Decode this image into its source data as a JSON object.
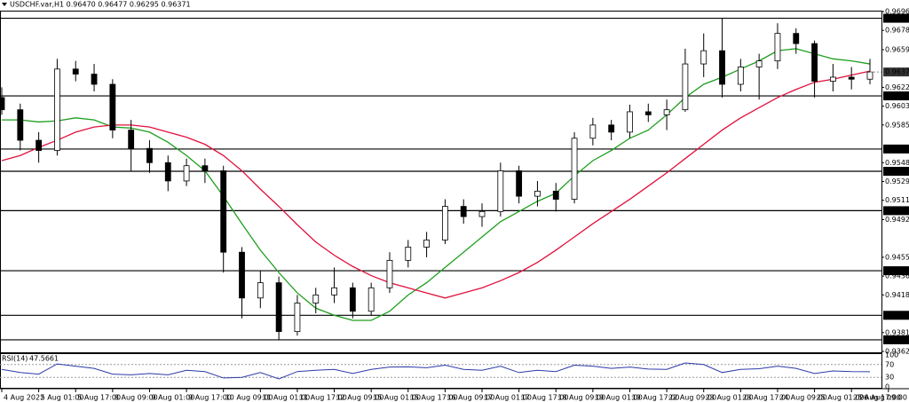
{
  "chart_data": [
    {
      "type": "candlestick",
      "title": "USDCHF.var,H1  0.96470 0.96477 0.96295 0.96371",
      "x": [
        0,
        8,
        16,
        24,
        32,
        40,
        48,
        56,
        64,
        72,
        80,
        88,
        96,
        104,
        112,
        120,
        128,
        136,
        144,
        152,
        160,
        168,
        176,
        184,
        192,
        200,
        208,
        216,
        224,
        232,
        240,
        248,
        256,
        264,
        272,
        280,
        288,
        296,
        304,
        312,
        320,
        328,
        336,
        344,
        352,
        360,
        368,
        376
      ],
      "open": [
        0.9612,
        0.96,
        0.957,
        0.956,
        0.964,
        0.9635,
        0.9625,
        0.958,
        0.9562,
        0.9548,
        0.953,
        0.9545,
        0.954,
        0.946,
        0.9415,
        0.943,
        0.9382,
        0.941,
        0.9418,
        0.9425,
        0.9402,
        0.9425,
        0.9452,
        0.9465,
        0.9472,
        0.9505,
        0.9495,
        0.95,
        0.954,
        0.9515,
        0.952,
        0.9512,
        0.9572,
        0.9585,
        0.9578,
        0.9598,
        0.9595,
        0.96,
        0.9645,
        0.9658,
        0.9625,
        0.9642,
        0.9648,
        0.9675,
        0.9665,
        0.9628,
        0.9632,
        0.963
      ],
      "high": [
        0.9622,
        0.9606,
        0.9578,
        0.965,
        0.9648,
        0.9645,
        0.963,
        0.959,
        0.957,
        0.9555,
        0.9552,
        0.9552,
        0.9545,
        0.9465,
        0.9442,
        0.9436,
        0.9418,
        0.9425,
        0.9445,
        0.943,
        0.943,
        0.946,
        0.9472,
        0.948,
        0.9512,
        0.9512,
        0.9508,
        0.9548,
        0.9545,
        0.953,
        0.9528,
        0.9578,
        0.9592,
        0.959,
        0.9605,
        0.9606,
        0.961,
        0.966,
        0.9675,
        0.96899,
        0.965,
        0.9655,
        0.9685,
        0.968,
        0.9668,
        0.9645,
        0.9642,
        0.965
      ],
      "low": [
        0.9595,
        0.956,
        0.9548,
        0.9555,
        0.9628,
        0.9618,
        0.9572,
        0.954,
        0.9538,
        0.952,
        0.9525,
        0.9528,
        0.944,
        0.9395,
        0.9405,
        0.93739,
        0.9378,
        0.94,
        0.941,
        0.9395,
        0.9398,
        0.942,
        0.9445,
        0.9455,
        0.9468,
        0.9488,
        0.9485,
        0.9495,
        0.9508,
        0.9505,
        0.95,
        0.9508,
        0.9565,
        0.957,
        0.9572,
        0.9588,
        0.958,
        0.9598,
        0.9632,
        0.9612,
        0.9618,
        0.961,
        0.964,
        0.9655,
        0.9612,
        0.9618,
        0.962,
        0.9625
      ],
      "close": [
        0.96,
        0.957,
        0.956,
        0.964,
        0.9635,
        0.9625,
        0.958,
        0.9562,
        0.9548,
        0.953,
        0.9545,
        0.954,
        0.946,
        0.9415,
        0.943,
        0.9382,
        0.941,
        0.9418,
        0.9425,
        0.9402,
        0.9425,
        0.9452,
        0.9465,
        0.9472,
        0.9505,
        0.9495,
        0.95,
        0.954,
        0.9515,
        0.952,
        0.9512,
        0.9572,
        0.9585,
        0.9578,
        0.9598,
        0.9595,
        0.96,
        0.9645,
        0.9658,
        0.9625,
        0.9642,
        0.9648,
        0.9675,
        0.9665,
        0.9628,
        0.9632,
        0.963,
        0.96371
      ],
      "up_color": "#ffffff",
      "down_color": "#000000",
      "series": [
        {
          "color": "#1e9e1e",
          "values": [
            0.959,
            0.959,
            0.9588,
            0.9589,
            0.9592,
            0.959,
            0.9583,
            0.9582,
            0.9578,
            0.9568,
            0.9555,
            0.954,
            0.9515,
            0.9488,
            0.9462,
            0.944,
            0.942,
            0.9405,
            0.9398,
            0.9393,
            0.9393,
            0.9402,
            0.9418,
            0.943,
            0.9445,
            0.946,
            0.9475,
            0.949,
            0.95,
            0.951,
            0.9518,
            0.9535,
            0.955,
            0.956,
            0.9572,
            0.958,
            0.9595,
            0.9612,
            0.9625,
            0.9632,
            0.964,
            0.9648,
            0.9658,
            0.966,
            0.9655,
            0.965,
            0.9648,
            0.9645
          ]
        },
        {
          "color": "#e0103c",
          "values": [
            0.955,
            0.9555,
            0.9563,
            0.957,
            0.9578,
            0.9583,
            0.9585,
            0.9585,
            0.9583,
            0.9578,
            0.9573,
            0.9566,
            0.9555,
            0.954,
            0.9522,
            0.9505,
            0.9487,
            0.947,
            0.9457,
            0.9446,
            0.9437,
            0.943,
            0.9425,
            0.942,
            0.9415,
            0.942,
            0.9425,
            0.9432,
            0.944,
            0.945,
            0.9462,
            0.9475,
            0.9488,
            0.95,
            0.9512,
            0.9525,
            0.9538,
            0.9552,
            0.9566,
            0.958,
            0.9592,
            0.9602,
            0.9612,
            0.962,
            0.9627,
            0.963,
            0.9634,
            0.9638
          ]
        }
      ],
      "levels": [
        {
          "value": 0.96899,
          "label": "0.96899"
        },
        {
          "value": 0.96136,
          "label": "0.96136"
        },
        {
          "value": 0.95614,
          "label": "0.95614"
        },
        {
          "value": 0.95395,
          "label": "0.95395"
        },
        {
          "value": 0.95008,
          "label": "0.95008"
        },
        {
          "value": 0.94418,
          "label": "0.94418"
        },
        {
          "value": 0.9398,
          "label": "0.93980"
        },
        {
          "value": 0.93739,
          "label": "0.93739"
        }
      ],
      "xlim": [
        0,
        381
      ],
      "xticks": [
        {
          "value": 0,
          "label": "4 Aug 2022"
        },
        {
          "value": 16,
          "label": "5 Aug 01:00"
        },
        {
          "value": 32,
          "label": "5 Aug 17:00"
        },
        {
          "value": 48,
          "label": "8 Aug 09:00"
        },
        {
          "value": 64,
          "label": "9 Aug 01:00"
        },
        {
          "value": 80,
          "label": "9 Aug 17:00"
        },
        {
          "value": 96,
          "label": "10 Aug 09:00"
        },
        {
          "value": 112,
          "label": "11 Aug 01:00"
        },
        {
          "value": 128,
          "label": "11 Aug 17:00"
        },
        {
          "value": 144,
          "label": "12 Aug 09:00"
        },
        {
          "value": 160,
          "label": "15 Aug 01:00"
        },
        {
          "value": 176,
          "label": "15 Aug 17:00"
        },
        {
          "value": 192,
          "label": "16 Aug 09:00"
        },
        {
          "value": 208,
          "label": "17 Aug 01:00"
        },
        {
          "value": 224,
          "label": "17 Aug 17:00"
        },
        {
          "value": 240,
          "label": "18 Aug 09:00"
        },
        {
          "value": 256,
          "label": "19 Aug 01:00"
        },
        {
          "value": 272,
          "label": "19 Aug 17:00"
        },
        {
          "value": 288,
          "label": "22 Aug 09:00"
        },
        {
          "value": 304,
          "label": "23 Aug 01:00"
        },
        {
          "value": 320,
          "label": "23 Aug 17:00"
        },
        {
          "value": 336,
          "label": "24 Aug 09:00"
        },
        {
          "value": 352,
          "label": "25 Aug 01:00"
        },
        {
          "value": 368,
          "label": "25 Aug 17:00"
        },
        {
          "value": 384,
          "label": "26 Aug 09:00"
        }
      ],
      "ylim": [
        0.93625,
        0.96965
      ],
      "yticks": [
        {
          "value": 0.96965,
          "label": "0.96965"
        },
        {
          "value": 0.9678,
          "label": "0.96780"
        },
        {
          "value": 0.9659,
          "label": "0.96590"
        },
        {
          "value": 0.9622,
          "label": "0.96220"
        },
        {
          "value": 0.96035,
          "label": "0.96035"
        },
        {
          "value": 0.9585,
          "label": "0.95850"
        },
        {
          "value": 0.9548,
          "label": "0.95480"
        },
        {
          "value": 0.95295,
          "label": "0.95295"
        },
        {
          "value": 0.9511,
          "label": "0.95110"
        },
        {
          "value": 0.9492,
          "label": "0.94920"
        },
        {
          "value": 0.9455,
          "label": "0.94550"
        },
        {
          "value": 0.94365,
          "label": "0.94365"
        },
        {
          "value": 0.9418,
          "label": "0.94180"
        },
        {
          "value": 0.9381,
          "label": "0.93810"
        },
        {
          "value": 0.93625,
          "label": "0.93625"
        }
      ]
    },
    {
      "type": "line",
      "title": "RSI(14)",
      "color": "#2b3aa8",
      "values": [
        55,
        45,
        40,
        72,
        65,
        58,
        40,
        38,
        42,
        38,
        52,
        48,
        28,
        30,
        45,
        25,
        48,
        52,
        55,
        42,
        55,
        62,
        63,
        60,
        68,
        55,
        52,
        65,
        45,
        52,
        48,
        68,
        65,
        58,
        62,
        56,
        55,
        75,
        70,
        45,
        55,
        57,
        65,
        58,
        42,
        50,
        48,
        47.5661
      ],
      "ylim": [
        0,
        100
      ],
      "yticks": [
        100,
        70,
        30,
        0
      ]
    }
  ]
}
